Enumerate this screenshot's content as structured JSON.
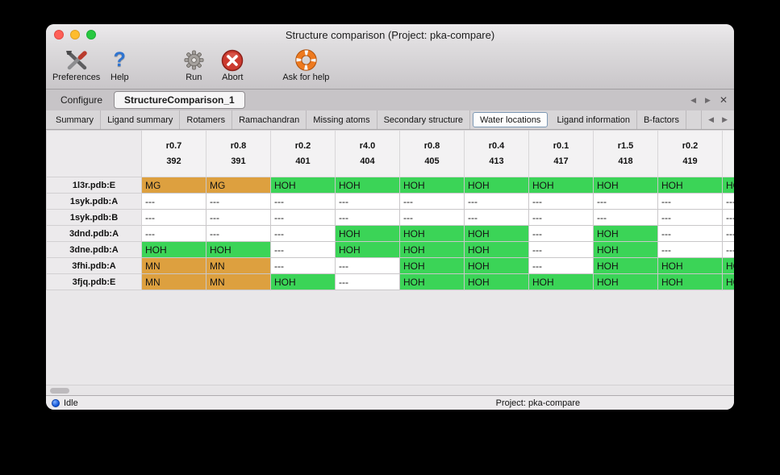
{
  "window": {
    "title": "Structure comparison (Project: pka-compare)"
  },
  "icons": {
    "left_arrow": "◀",
    "right_arrow": "▶",
    "close": "✕"
  },
  "toolbar": {
    "items": [
      {
        "label": "Preferences",
        "icon": "preferences-tools-icon"
      },
      {
        "label": "Help",
        "icon": "help-question-icon"
      },
      {
        "label": "Run",
        "icon": "run-gear-icon"
      },
      {
        "label": "Abort",
        "icon": "abort-icon"
      },
      {
        "label": "Ask for help",
        "icon": "ask-for-help-lifebuoy-icon"
      }
    ]
  },
  "tabs": {
    "items": [
      {
        "label": "Configure",
        "active": false
      },
      {
        "label": "StructureComparison_1",
        "active": true
      }
    ]
  },
  "subtabs": {
    "selected": "Water locations",
    "items": [
      "Summary",
      "Ligand summary",
      "Rotamers",
      "Ramachandran",
      "Missing atoms",
      "Secondary structure",
      "Water locations",
      "Ligand information",
      "B-factors"
    ]
  },
  "table": {
    "columns": [
      {
        "residue": "r0.7",
        "number": "392"
      },
      {
        "residue": "r0.8",
        "number": "391"
      },
      {
        "residue": "r0.2",
        "number": "401"
      },
      {
        "residue": "r4.0",
        "number": "404"
      },
      {
        "residue": "r0.8",
        "number": "405"
      },
      {
        "residue": "r0.4",
        "number": "413"
      },
      {
        "residue": "r0.1",
        "number": "417"
      },
      {
        "residue": "r1.5",
        "number": "418"
      },
      {
        "residue": "r0.2",
        "number": "419"
      },
      {
        "residue": "",
        "number": ""
      }
    ],
    "rows": [
      {
        "label": "1l3r.pdb:E",
        "cells": [
          "MG",
          "MG",
          "HOH",
          "HOH",
          "HOH",
          "HOH",
          "HOH",
          "HOH",
          "HOH",
          "HOH"
        ]
      },
      {
        "label": "1syk.pdb:A",
        "cells": [
          "---",
          "---",
          "---",
          "---",
          "---",
          "---",
          "---",
          "---",
          "---",
          "---"
        ]
      },
      {
        "label": "1syk.pdb:B",
        "cells": [
          "---",
          "---",
          "---",
          "---",
          "---",
          "---",
          "---",
          "---",
          "---",
          "---"
        ]
      },
      {
        "label": "3dnd.pdb:A",
        "cells": [
          "---",
          "---",
          "---",
          "HOH",
          "HOH",
          "HOH",
          "---",
          "HOH",
          "---",
          "---"
        ]
      },
      {
        "label": "3dne.pdb:A",
        "cells": [
          "HOH",
          "HOH",
          "---",
          "HOH",
          "HOH",
          "HOH",
          "---",
          "HOH",
          "---",
          "---"
        ]
      },
      {
        "label": "3fhi.pdb:A",
        "cells": [
          "MN",
          "MN",
          "---",
          "---",
          "HOH",
          "HOH",
          "---",
          "HOH",
          "HOH",
          "HOH"
        ]
      },
      {
        "label": "3fjq.pdb:E",
        "cells": [
          "MN",
          "MN",
          "HOH",
          "---",
          "HOH",
          "HOH",
          "HOH",
          "HOH",
          "HOH",
          "HOH"
        ]
      }
    ]
  },
  "legend_colors": {
    "water": "#3bd457",
    "metal": "#dda03f",
    "empty": "#ffffff"
  },
  "statusbar": {
    "status": "Idle",
    "project": "Project: pka-compare"
  }
}
